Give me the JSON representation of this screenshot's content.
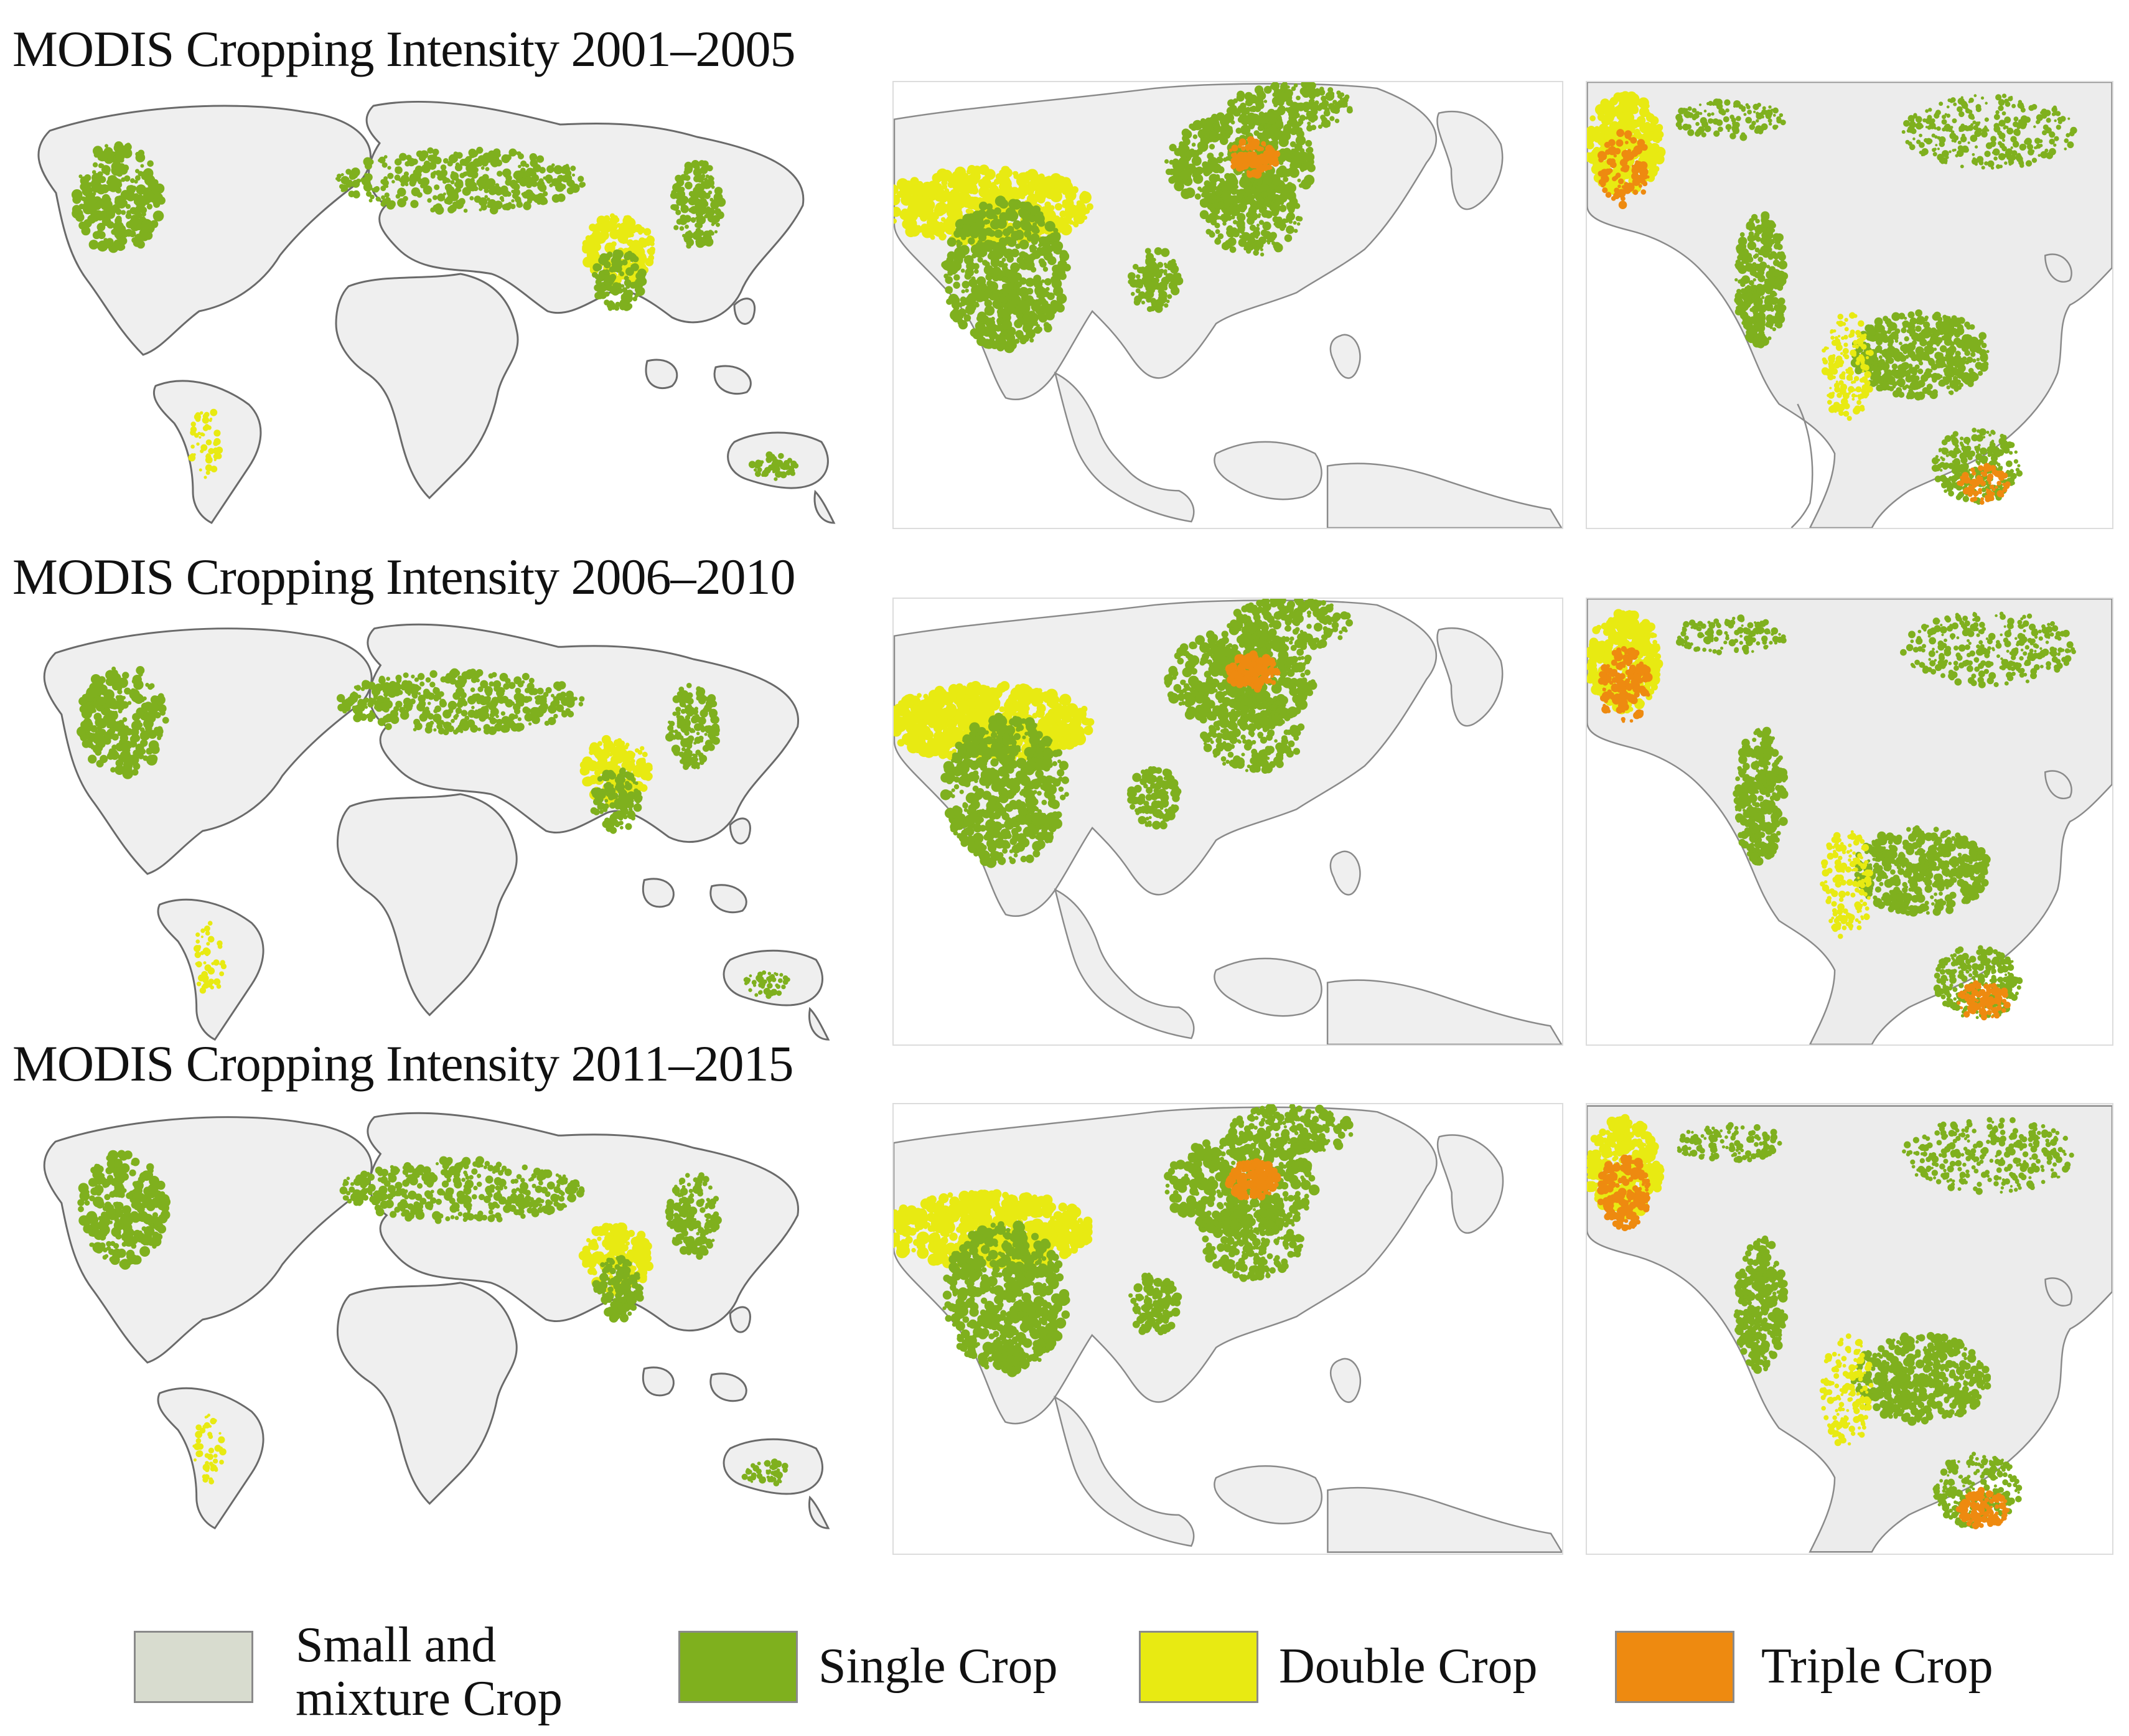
{
  "rows": [
    {
      "title": "MODIS Cropping Intensity 2001–2005"
    },
    {
      "title": "MODIS Cropping Intensity 2006–2010"
    },
    {
      "title": "MODIS Cropping Intensity 2011–2015"
    }
  ],
  "legend": [
    {
      "label_lines": [
        "Small and",
        "mixture Crop"
      ],
      "color": "#d8dccf"
    },
    {
      "label_lines": [
        "Single Crop"
      ],
      "color": "#7fb01e"
    },
    {
      "label_lines": [
        "Double Crop"
      ],
      "color": "#e8ea12"
    },
    {
      "label_lines": [
        "Triple Crop"
      ],
      "color": "#ee8a10"
    }
  ],
  "colors": {
    "land": "#efefef",
    "outline": "#6a6a6a",
    "single": "#7fb01e",
    "double": "#e8ea12",
    "triple": "#ee8a10"
  }
}
